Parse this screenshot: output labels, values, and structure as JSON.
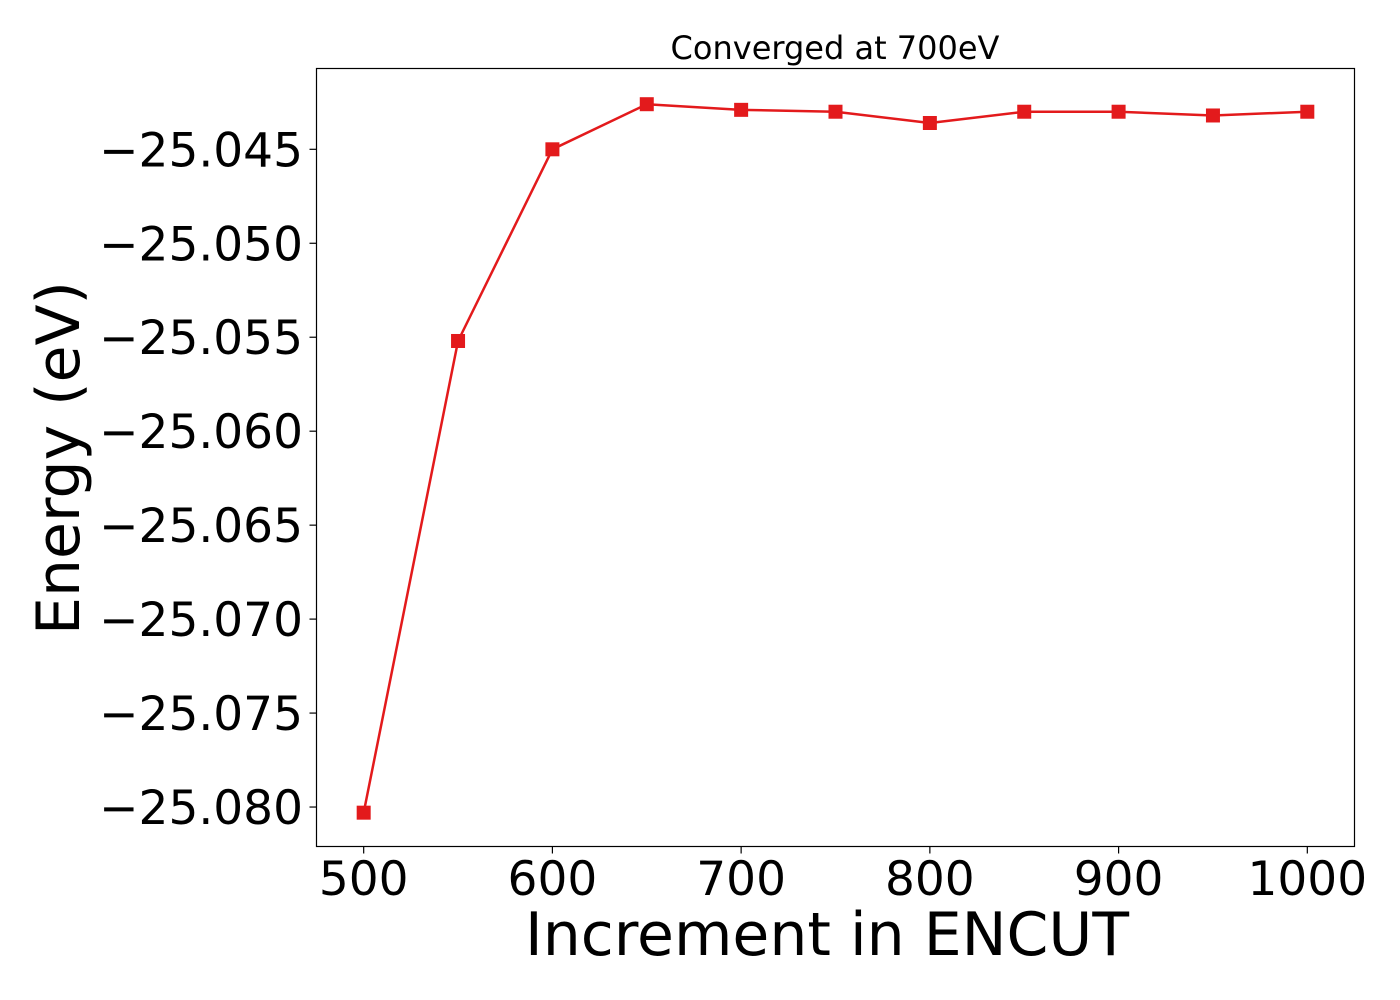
{
  "chart_data": {
    "type": "line",
    "title": "Converged at 700eV",
    "xlabel": "Increment in ENCUT",
    "ylabel": "Energy (eV)",
    "xlim": [
      475,
      1025
    ],
    "ylim": [
      -25.0821,
      -25.0407
    ],
    "x_ticks": [
      500,
      600,
      700,
      800,
      900,
      1000
    ],
    "x_tick_labels": [
      "500",
      "600",
      "700",
      "800",
      "900",
      "1000"
    ],
    "y_ticks": [
      -25.045,
      -25.05,
      -25.055,
      -25.06,
      -25.065,
      -25.07,
      -25.075,
      -25.08
    ],
    "y_tick_labels": [
      "−25.045",
      "−25.050",
      "−25.055",
      "−25.060",
      "−25.065",
      "−25.070",
      "−25.075",
      "−25.080"
    ],
    "grid": false,
    "series": [
      {
        "color": "#e31a1c",
        "marker": "square",
        "x": [
          500,
          550,
          600,
          650,
          700,
          750,
          800,
          850,
          900,
          950,
          1000
        ],
        "y": [
          -25.0803,
          -25.0552,
          -25.045,
          -25.0426,
          -25.0429,
          -25.043,
          -25.0436,
          -25.043,
          -25.043,
          -25.0432,
          -25.043
        ]
      }
    ]
  }
}
